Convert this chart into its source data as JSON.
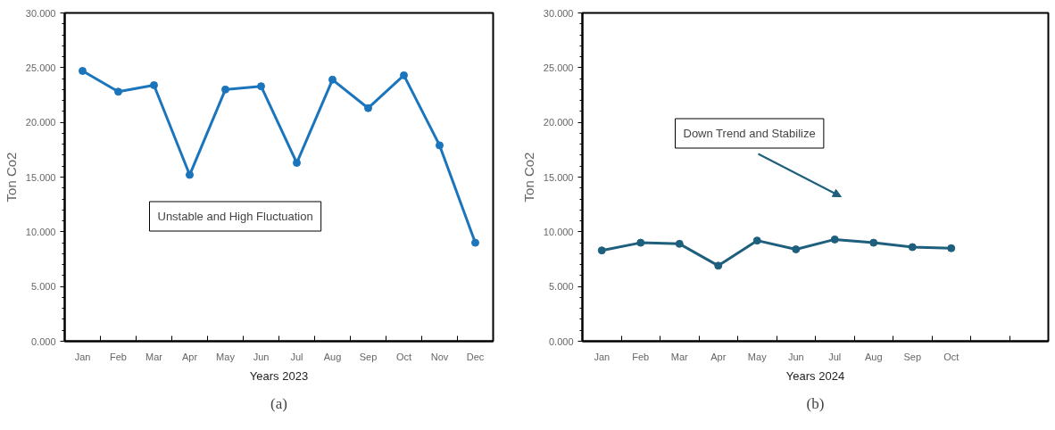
{
  "chart_data": [
    {
      "type": "line",
      "xlabel": "Years 2023",
      "ylabel": "Ton Co2",
      "categories": [
        "Jan",
        "Feb",
        "Mar",
        "Apr",
        "May",
        "Jun",
        "Jul",
        "Aug",
        "Sep",
        "Oct",
        "Nov",
        "Dec"
      ],
      "series": [
        {
          "color": "#1b75bc",
          "values": [
            24.7,
            22.8,
            23.4,
            15.2,
            23.0,
            23.3,
            16.3,
            23.9,
            21.3,
            24.3,
            17.9,
            9.0
          ]
        }
      ],
      "ylim": [
        0,
        30
      ],
      "yticks": [
        {
          "value": 0,
          "label": "0.000"
        },
        {
          "value": 5,
          "label": "5.000"
        },
        {
          "value": 10,
          "label": "10.000"
        },
        {
          "value": 15,
          "label": "15.000"
        },
        {
          "value": 20,
          "label": "20.000"
        },
        {
          "value": 25,
          "label": "25.000"
        },
        {
          "value": 30,
          "label": "30.000"
        }
      ],
      "marker": "circle",
      "grid": false,
      "annotations": [
        "Unstable and High Fluctuation",
        "(a)"
      ]
    },
    {
      "type": "line",
      "xlabel": "Years 2024",
      "ylabel": "Ton Co2",
      "categories": [
        "Jan",
        "Feb",
        "Mar",
        "Apr",
        "May",
        "Jun",
        "Jul",
        "Aug",
        "Sep",
        "Oct",
        null,
        null
      ],
      "series": [
        {
          "color": "#1d5f7d",
          "values": [
            8.3,
            9.0,
            8.9,
            6.9,
            9.2,
            8.4,
            9.3,
            9.0,
            8.6,
            8.5,
            null,
            null
          ]
        }
      ],
      "ylim": [
        0,
        30
      ],
      "yticks": [
        {
          "value": 0,
          "label": "0.000"
        },
        {
          "value": 5,
          "label": "5.000"
        },
        {
          "value": 10,
          "label": "10.000"
        },
        {
          "value": 15,
          "label": "15.000"
        },
        {
          "value": 20,
          "label": "20.000"
        },
        {
          "value": 25,
          "label": "25.000"
        },
        {
          "value": 30,
          "label": "30.000"
        }
      ],
      "marker": "circle",
      "grid": false,
      "annotations": [
        "Down Trend and Stabilize",
        "(b)"
      ]
    }
  ]
}
